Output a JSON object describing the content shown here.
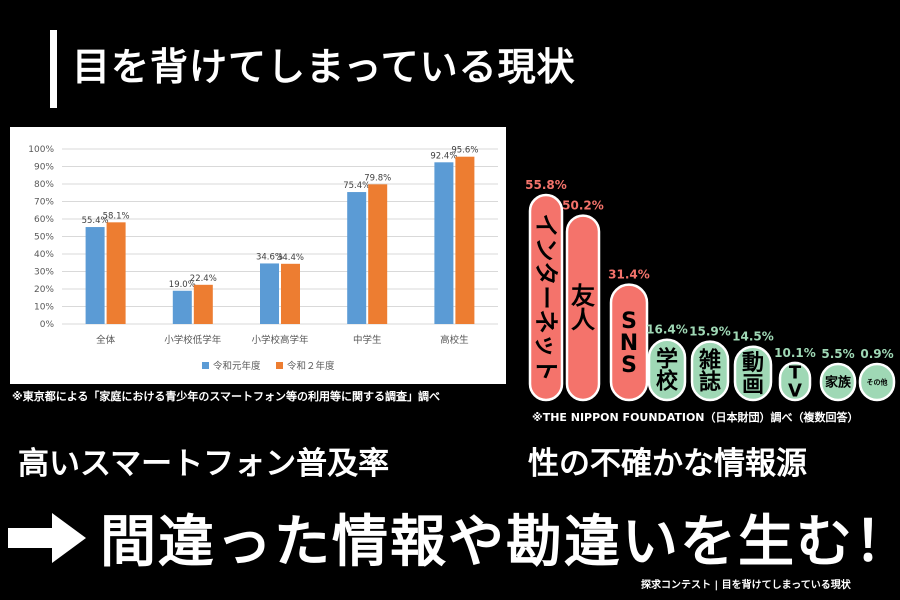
{
  "title": "目を背けてしまっている現状",
  "left_note": "※東京都による「家庭における青少年のスマートフォン等の利用等に関する調査」調べ",
  "right_note": "※THE NIPPON FOUNDATION（日本財団）調べ（複数回答）",
  "mid_left": "高いスマートフォン普及率",
  "mid_right": "性の不確かな情報源",
  "conclusion": "間違った情報や勘違いを生む！",
  "footer": "探求コンテスト | 目を背けてしまっている現状",
  "colors": {
    "blue": "#5b9bd5",
    "orange": "#ed7d31",
    "coral": "#f4736b",
    "mint": "#9fd8b5"
  },
  "chart_data": [
    {
      "type": "bar",
      "categories": [
        "全体",
        "小学校低学年",
        "小学校高学年",
        "中学生",
        "高校生"
      ],
      "series": [
        {
          "name": "令和元年度",
          "values": [
            55.4,
            19.0,
            34.6,
            75.4,
            92.4
          ],
          "labels": [
            "55.4%",
            "19.0%",
            "34.6%",
            "75.4%",
            "92.4%"
          ]
        },
        {
          "name": "令和２年度",
          "values": [
            58.1,
            22.4,
            34.4,
            79.8,
            95.6
          ],
          "labels": [
            "58.1%",
            "22.4%",
            "34.4%",
            "79.8%",
            "95.6%"
          ]
        }
      ],
      "ylim": [
        0,
        100
      ],
      "yticks": [
        "0%",
        "10%",
        "20%",
        "30%",
        "40%",
        "50%",
        "60%",
        "70%",
        "80%",
        "90%",
        "100%"
      ],
      "grid": true,
      "legend": "bottom"
    },
    {
      "type": "bar",
      "categories": [
        "インターネット",
        "友人",
        "SNS",
        "学校",
        "雑誌",
        "動画",
        "TV",
        "家族",
        "その他"
      ],
      "values": [
        55.8,
        50.2,
        31.4,
        16.4,
        15.9,
        14.5,
        10.1,
        5.5,
        0.9
      ],
      "labels": [
        "55.8%",
        "50.2%",
        "31.4%",
        "16.4%",
        "15.9%",
        "14.5%",
        "10.1%",
        "5.5%",
        "0.9%"
      ],
      "highlight": [
        true,
        true,
        true,
        false,
        false,
        false,
        false,
        false,
        false
      ]
    }
  ]
}
